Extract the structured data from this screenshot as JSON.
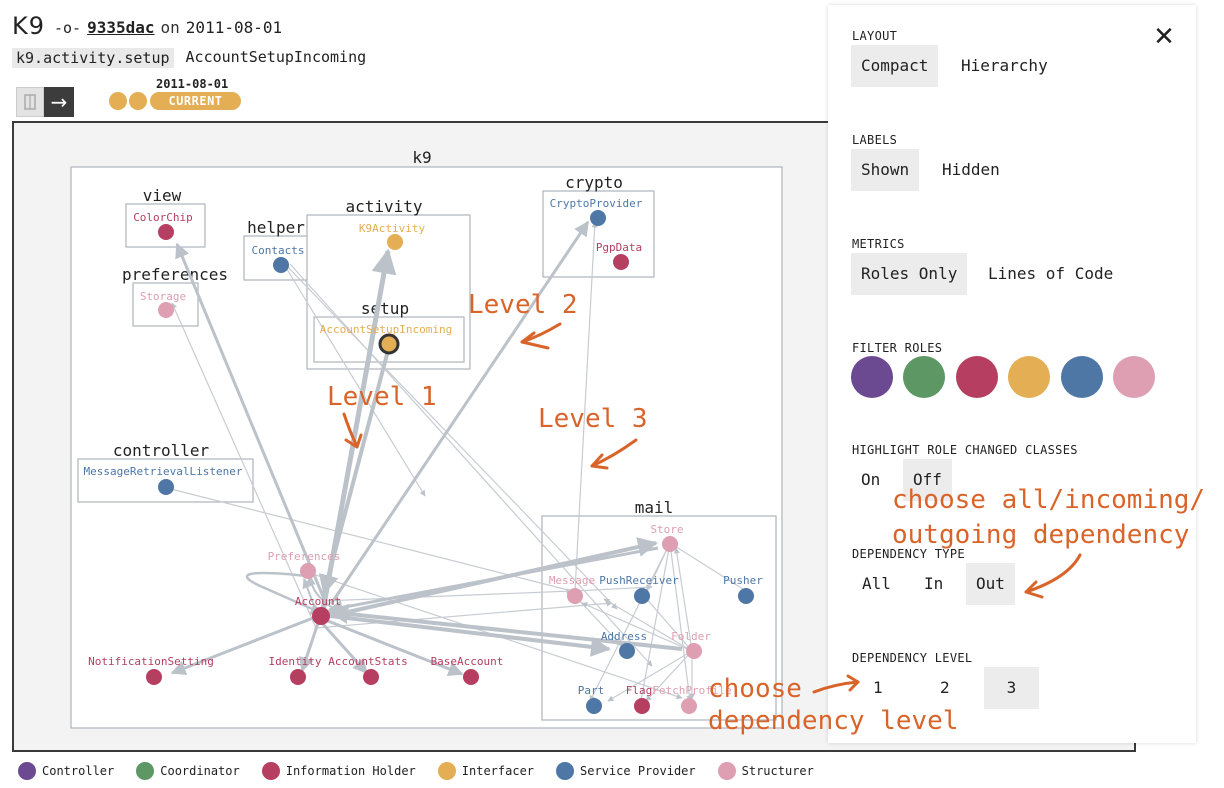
{
  "header": {
    "project": "K9",
    "commit_hash": "9335dac",
    "commit_on": "on",
    "commit_date": "2011-08-01",
    "package": "k9.activity.setup",
    "class_name": "AccountSetupIncoming"
  },
  "timeline": {
    "date": "2011-08-01",
    "current_label": "CURRENT",
    "arrow_glyph": "→"
  },
  "graph": {
    "groups": [
      {
        "label": "k9"
      },
      {
        "label": "view"
      },
      {
        "label": "activity"
      },
      {
        "label": "crypto"
      },
      {
        "label": "helper"
      },
      {
        "label": "preferences"
      },
      {
        "label": "setup"
      },
      {
        "label": "controller"
      },
      {
        "label": "mail"
      }
    ],
    "nodes": [
      {
        "label": "ColorChip",
        "color": "#b63e60"
      },
      {
        "label": "Storage",
        "color": "#dd9fb1"
      },
      {
        "label": "Contacts",
        "color": "#4e77a6"
      },
      {
        "label": "K9Activity",
        "color": "#e3ae54"
      },
      {
        "label": "AccountSetupIncoming",
        "color": "#e3ae54"
      },
      {
        "label": "CryptoProvider",
        "color": "#4e77a6"
      },
      {
        "label": "PgpData",
        "color": "#b63e60"
      },
      {
        "label": "MessageRetrievalListener",
        "color": "#4e77a6"
      },
      {
        "label": "Preferences",
        "color": "#dd9fb1"
      },
      {
        "label": "Account",
        "color": "#b63e60"
      },
      {
        "label": "NotificationSetting",
        "color": "#b63e60"
      },
      {
        "label": "Identity",
        "color": "#b63e60"
      },
      {
        "label": "AccountStats",
        "color": "#b63e60"
      },
      {
        "label": "BaseAccount",
        "color": "#b63e60"
      },
      {
        "label": "Store",
        "color": "#dd9fb1"
      },
      {
        "label": "Message",
        "color": "#dd9fb1"
      },
      {
        "label": "PushReceiver",
        "color": "#4e77a6"
      },
      {
        "label": "Pusher",
        "color": "#4e77a6"
      },
      {
        "label": "Address",
        "color": "#4e77a6"
      },
      {
        "label": "Folder",
        "color": "#dd9fb1"
      },
      {
        "label": "Part",
        "color": "#4e77a6"
      },
      {
        "label": "Flag",
        "color": "#b63e60"
      },
      {
        "label": "FetchProfile",
        "color": "#dd9fb1"
      }
    ]
  },
  "panel": {
    "close_glyph": "✕",
    "layout": {
      "label": "LAYOUT",
      "options": [
        "Compact",
        "Hierarchy"
      ],
      "selected": "Compact"
    },
    "labels": {
      "label": "LABELS",
      "options": [
        "Shown",
        "Hidden"
      ],
      "selected": "Shown"
    },
    "metrics": {
      "label": "METRICS",
      "options": [
        "Roles Only",
        "Lines of Code"
      ],
      "selected": "Roles Only"
    },
    "filter_roles": {
      "label": "FILTER ROLES",
      "colors": [
        "#6b4a91",
        "#5c9764",
        "#b63e60",
        "#e3ae54",
        "#4e77a6",
        "#dd9fb1"
      ]
    },
    "highlight": {
      "label": "HIGHLIGHT ROLE CHANGED CLASSES",
      "options": [
        "On",
        "Off"
      ],
      "selected": "Off"
    },
    "dependency_type": {
      "label": "DEPENDENCY TYPE",
      "options": [
        "All",
        "In",
        "Out"
      ],
      "selected": "Out"
    },
    "dependency_level": {
      "label": "DEPENDENCY LEVEL",
      "options": [
        "1",
        "2",
        "3"
      ],
      "selected": "3"
    }
  },
  "legend": [
    {
      "label": "Controller",
      "color": "#6b4a91"
    },
    {
      "label": "Coordinator",
      "color": "#5c9764"
    },
    {
      "label": "Information Holder",
      "color": "#b63e60"
    },
    {
      "label": "Interfacer",
      "color": "#e3ae54"
    },
    {
      "label": "Service Provider",
      "color": "#4e77a6"
    },
    {
      "label": "Structurer",
      "color": "#dd9fb1"
    }
  ],
  "annotations": {
    "level1": "Level 1",
    "level2": "Level 2",
    "level3": "Level 3",
    "dependency_line1": "choose all/incoming/",
    "dependency_line2": "outgoing dependency",
    "level_line1": "choose",
    "level_line2": "dependency level"
  }
}
